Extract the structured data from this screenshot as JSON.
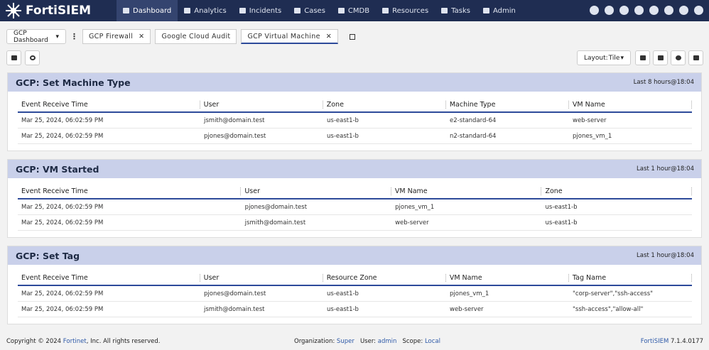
{
  "header": {
    "brand": "FortiSIEM",
    "nav": [
      "Dashboard",
      "Analytics",
      "Incidents",
      "Cases",
      "CMDB",
      "Resources",
      "Tasks",
      "Admin"
    ]
  },
  "toolbar": {
    "dashboard_select": "GCP Dashboard",
    "tabs": [
      "GCP Firewall",
      "Google Cloud Audit",
      "GCP Virtual Machine"
    ],
    "layout_label": "Layout:",
    "layout_value": "Tile"
  },
  "widgets": [
    {
      "title": "GCP: Set Machine Type",
      "time": "Last 8 hours@18:04",
      "columns": [
        "Event Receive Time",
        "User",
        "Zone",
        "Machine Type",
        "VM Name"
      ],
      "rows": [
        [
          "Mar 25, 2024, 06:02:59 PM",
          "jsmith@domain.test",
          "us-east1-b",
          "e2-standard-64",
          "web-server"
        ],
        [
          "Mar 25, 2024, 06:02:59 PM",
          "pjones@domain.test",
          "us-east1-b",
          "n2-standard-64",
          "pjones_vm_1"
        ]
      ]
    },
    {
      "title": "GCP: VM Started",
      "time": "Last 1 hour@18:04",
      "columns": [
        "Event Receive Time",
        "User",
        "VM Name",
        "Zone"
      ],
      "rows": [
        [
          "Mar 25, 2024, 06:02:59 PM",
          "pjones@domain.test",
          "pjones_vm_1",
          "us-east1-b"
        ],
        [
          "Mar 25, 2024, 06:02:59 PM",
          "jsmith@domain.test",
          "web-server",
          "us-east1-b"
        ]
      ]
    },
    {
      "title": "GCP: Set Tag",
      "time": "Last 1 hour@18:04",
      "columns": [
        "Event Receive Time",
        "User",
        "Resource Zone",
        "VM Name",
        "Tag Name"
      ],
      "rows": [
        [
          "Mar 25, 2024, 06:02:59 PM",
          "pjones@domain.test",
          "us-east1-b",
          "pjones_vm_1",
          "\"corp-server\",\"ssh-access\""
        ],
        [
          "Mar 25, 2024, 06:02:59 PM",
          "jsmith@domain.test",
          "us-east1-b",
          "web-server",
          "\"ssh-access\",\"allow-all\""
        ]
      ]
    }
  ],
  "footer": {
    "copyright": "Copyright © 2024",
    "company": "Fortinet",
    "rights": ", Inc. All rights reserved.",
    "org_label": "Organization:",
    "org": "Super",
    "user_label": "User:",
    "user": "admin",
    "scope_label": "Scope:",
    "scope": "Local",
    "product": "FortiSIEM",
    "version": "7.1.4.0177"
  }
}
